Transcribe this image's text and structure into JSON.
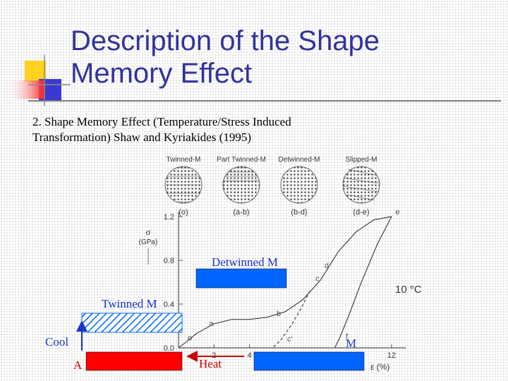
{
  "slide": {
    "title_line1": "Description of the Shape",
    "title_line2": "Memory Effect",
    "caption_line1": "2. Shape Memory Effect (Temperature/Stress Induced",
    "caption_line2": "Transformation) Shaw and Kyriakides (1995)"
  },
  "structures": [
    {
      "name": "Twinned-M",
      "tag": "(o)"
    },
    {
      "name": "Part Twinned-M",
      "tag": "(a-b)"
    },
    {
      "name": "Detwinned-M",
      "tag": "(b-d)"
    },
    {
      "name": "Slipped-M",
      "tag": "(d-e)"
    }
  ],
  "chart_data": {
    "type": "line",
    "title": "",
    "xlabel": "ε (%)",
    "ylabel": "σ",
    "ylabel_unit": "(GPa)",
    "xlim": [
      0,
      12
    ],
    "ylim": [
      0,
      1.2
    ],
    "x_ticks": [
      "0",
      "2",
      "4",
      "12"
    ],
    "y_ticks": [
      "0.0",
      "0.4",
      "0.8",
      "1.2"
    ],
    "annotation": "10 °C",
    "series": [
      {
        "role": "loading",
        "x": [
          0,
          0.4,
          1,
          2,
          3,
          4,
          5,
          6,
          7,
          8,
          9,
          10,
          11,
          12
        ],
        "y": [
          0,
          0.05,
          0.13,
          0.22,
          0.26,
          0.26,
          0.28,
          0.33,
          0.44,
          0.62,
          0.88,
          1.06,
          1.17,
          1.2
        ]
      },
      {
        "role": "unloading",
        "x": [
          12,
          11.2,
          10.3,
          9.6,
          9.1,
          8.8
        ],
        "y": [
          1.2,
          0.95,
          0.6,
          0.3,
          0.1,
          0
        ]
      },
      {
        "role": "partial-unloading",
        "style": "dashed",
        "x": [
          7.4,
          6.9,
          6.4,
          5.8,
          5.3
        ],
        "y": [
          0.52,
          0.36,
          0.22,
          0.08,
          0
        ]
      }
    ],
    "point_labels": [
      {
        "label": "o",
        "x": 0.4,
        "y": 0.05
      },
      {
        "label": "a",
        "x": 1.6,
        "y": 0.18
      },
      {
        "label": "b",
        "x": 5.4,
        "y": 0.27
      },
      {
        "label": "c",
        "x": 7.6,
        "y": 0.59
      },
      {
        "label": "d",
        "x": 8.1,
        "y": 0.71
      },
      {
        "label": "c'",
        "x": 6.0,
        "y": 0.04
      },
      {
        "label": "f",
        "x": 9.3,
        "y": 0.06
      },
      {
        "label": "e",
        "x": 12.1,
        "y": 1.2
      }
    ]
  },
  "overlay": {
    "detwinned_label": "Detwinned M",
    "twinned_label": "Twinned M",
    "cool_label": "Cool",
    "a_label": "A",
    "heat_label": "Heat",
    "m_label": "M"
  },
  "colors": {
    "title": "#33339a",
    "blue_block": "#0066ff",
    "red_block": "#ff0000",
    "label_blue": "#1a33cc",
    "label_red": "#cc0000"
  }
}
